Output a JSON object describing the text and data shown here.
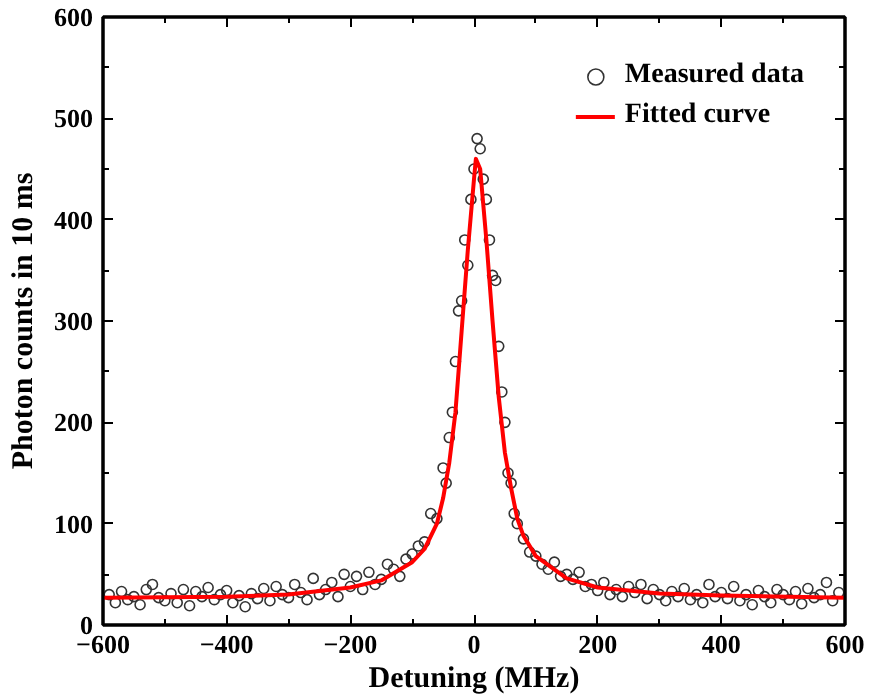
{
  "chart_data": {
    "type": "scatter",
    "xlabel": "Detuning (MHz)",
    "ylabel": "Photon counts in 10 ms",
    "xlim": [
      -600,
      600
    ],
    "xticks": [
      -600,
      -400,
      -200,
      0,
      200,
      400,
      600
    ],
    "ylim": [
      0,
      600
    ],
    "yticks": [
      0,
      100,
      200,
      300,
      400,
      500,
      600
    ],
    "grid": false,
    "legend": "top right",
    "series": [
      {
        "name": "Measured data",
        "marker": "circle",
        "color": "#333333",
        "x": [
          -590,
          -580,
          -570,
          -560,
          -550,
          -540,
          -530,
          -520,
          -510,
          -500,
          -490,
          -480,
          -470,
          -460,
          -450,
          -440,
          -430,
          -420,
          -410,
          -400,
          -390,
          -380,
          -370,
          -360,
          -350,
          -340,
          -330,
          -320,
          -310,
          -300,
          -290,
          -280,
          -270,
          -260,
          -250,
          -240,
          -230,
          -220,
          -210,
          -200,
          -190,
          -180,
          -170,
          -160,
          -150,
          -140,
          -130,
          -120,
          -110,
          -100,
          -90,
          -80,
          -70,
          -60,
          -50,
          -45,
          -40,
          -35,
          -30,
          -25,
          -20,
          -15,
          -10,
          -5,
          0,
          5,
          10,
          15,
          20,
          25,
          30,
          35,
          40,
          45,
          50,
          55,
          60,
          65,
          70,
          80,
          90,
          100,
          110,
          120,
          130,
          140,
          150,
          160,
          170,
          180,
          190,
          200,
          210,
          220,
          230,
          240,
          250,
          260,
          270,
          280,
          290,
          300,
          310,
          320,
          330,
          340,
          350,
          360,
          370,
          380,
          390,
          400,
          410,
          420,
          430,
          440,
          450,
          460,
          470,
          480,
          490,
          500,
          510,
          520,
          530,
          540,
          550,
          560,
          570,
          580,
          590
        ],
        "values": [
          30,
          22,
          33,
          25,
          28,
          20,
          35,
          40,
          27,
          24,
          31,
          22,
          35,
          19,
          33,
          28,
          37,
          25,
          30,
          34,
          22,
          29,
          18,
          31,
          26,
          36,
          24,
          38,
          30,
          27,
          40,
          32,
          25,
          46,
          30,
          35,
          42,
          28,
          50,
          38,
          48,
          35,
          52,
          40,
          45,
          60,
          55,
          48,
          65,
          70,
          78,
          82,
          110,
          105,
          155,
          140,
          185,
          210,
          260,
          310,
          320,
          380,
          355,
          420,
          450,
          480,
          470,
          440,
          420,
          380,
          345,
          340,
          275,
          230,
          200,
          150,
          140,
          110,
          100,
          85,
          72,
          68,
          60,
          55,
          62,
          48,
          50,
          45,
          52,
          38,
          40,
          34,
          42,
          30,
          35,
          28,
          38,
          32,
          40,
          26,
          35,
          30,
          24,
          33,
          28,
          36,
          25,
          30,
          22,
          40,
          28,
          32,
          26,
          38,
          24,
          30,
          20,
          34,
          28,
          22,
          35,
          30,
          25,
          33,
          21,
          36,
          27,
          30,
          42,
          24,
          32
        ]
      },
      {
        "name": "Fitted curve",
        "type": "line",
        "marker": "none",
        "line_style": "solid",
        "color": "#ff0000",
        "x": [
          -600,
          -400,
          -300,
          -200,
          -150,
          -100,
          -80,
          -60,
          -50,
          -40,
          -30,
          -20,
          -10,
          0,
          3,
          10,
          20,
          30,
          40,
          50,
          60,
          70,
          80,
          100,
          150,
          200,
          300,
          400,
          600
        ],
        "values": [
          27,
          28,
          30,
          37,
          44,
          62,
          75,
          100,
          125,
          160,
          210,
          290,
          370,
          440,
          460,
          450,
          380,
          300,
          225,
          170,
          135,
          105,
          88,
          68,
          46,
          37,
          31,
          29,
          27
        ]
      }
    ]
  }
}
